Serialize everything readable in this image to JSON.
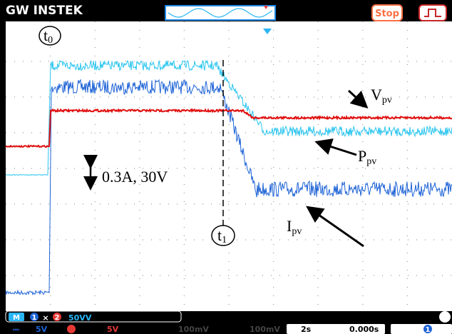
{
  "header": {
    "brand": "GW INSTEK",
    "stop": "Stop"
  },
  "annotations": {
    "t0": {
      "main": "t",
      "sub": "0"
    },
    "t1": {
      "main": "t",
      "sub": "1"
    },
    "vpv": {
      "main": "V",
      "sub": "pv"
    },
    "ppv": {
      "main": "P",
      "sub": "pv"
    },
    "ipv": {
      "main": "I",
      "sub": "pv"
    },
    "scale": "0.3A, 30V"
  },
  "math_bar": {
    "mode": "M",
    "ch_a": "1",
    "op": "×",
    "ch_b": "2",
    "scale": "50VV"
  },
  "status_bar": {
    "ch1": "5V",
    "ch2": "5V",
    "ch3": "100mV",
    "ch4": "100mV",
    "timebase": "2s",
    "position": "0.000s",
    "trigger_ch": "1"
  }
}
